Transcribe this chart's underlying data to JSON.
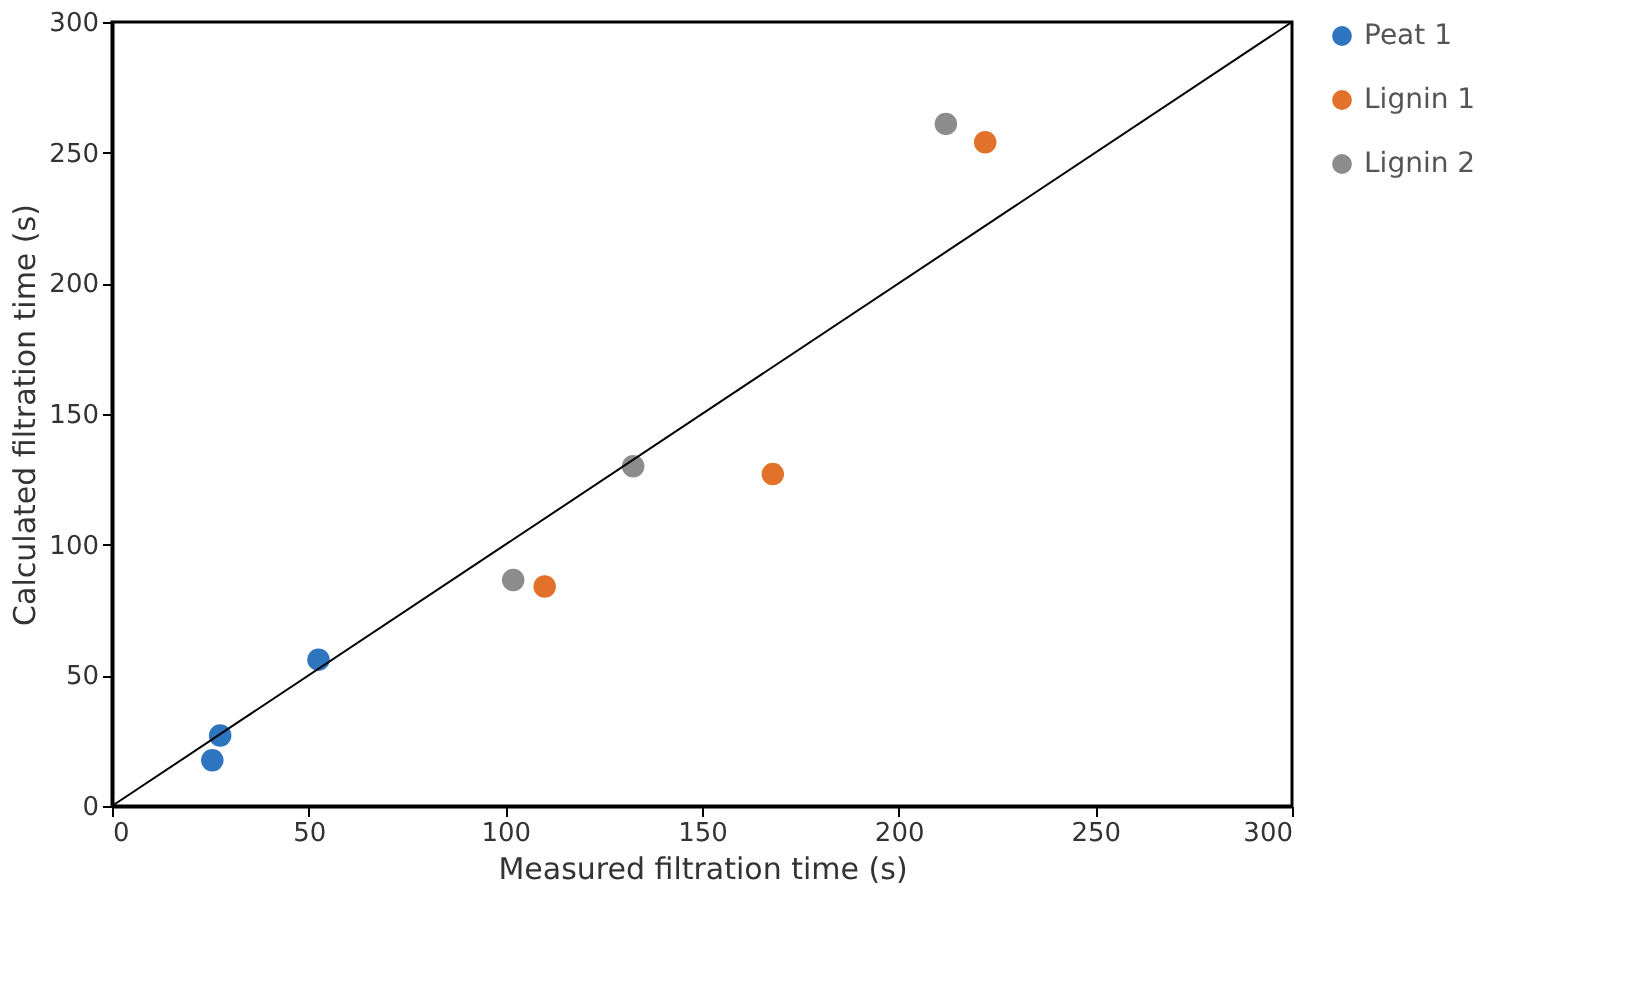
{
  "chart_data": {
    "type": "scatter",
    "xlabel": "Measured filtration time (s)",
    "ylabel": "Calculated filtration time (s)",
    "xlim": [
      0,
      300
    ],
    "xticks": [
      0,
      50,
      100,
      150,
      200,
      250,
      300
    ],
    "ylim": [
      0,
      300
    ],
    "yticks": [
      0,
      50,
      100,
      150,
      200,
      250,
      300
    ],
    "grid": false,
    "legend": "right",
    "marker": "circle",
    "series": [
      {
        "name": "Peat 1",
        "color": "#2e75c0",
        "x": [
          25.5,
          27.5,
          52.5
        ],
        "values": [
          17.5,
          27,
          56
        ]
      },
      {
        "name": "Lignin 1",
        "color": "#e2722a",
        "x": [
          110,
          168,
          222
        ],
        "values": [
          84,
          127,
          254
        ]
      },
      {
        "name": "Lignin 2",
        "color": "#8c8c8c",
        "x": [
          102,
          132.5,
          212
        ],
        "values": [
          86.5,
          130,
          261
        ]
      },
      {
        "type": "line",
        "marker": "none",
        "color": "#000000",
        "x": [
          0,
          300
        ],
        "values": [
          0,
          300
        ]
      }
    ]
  }
}
